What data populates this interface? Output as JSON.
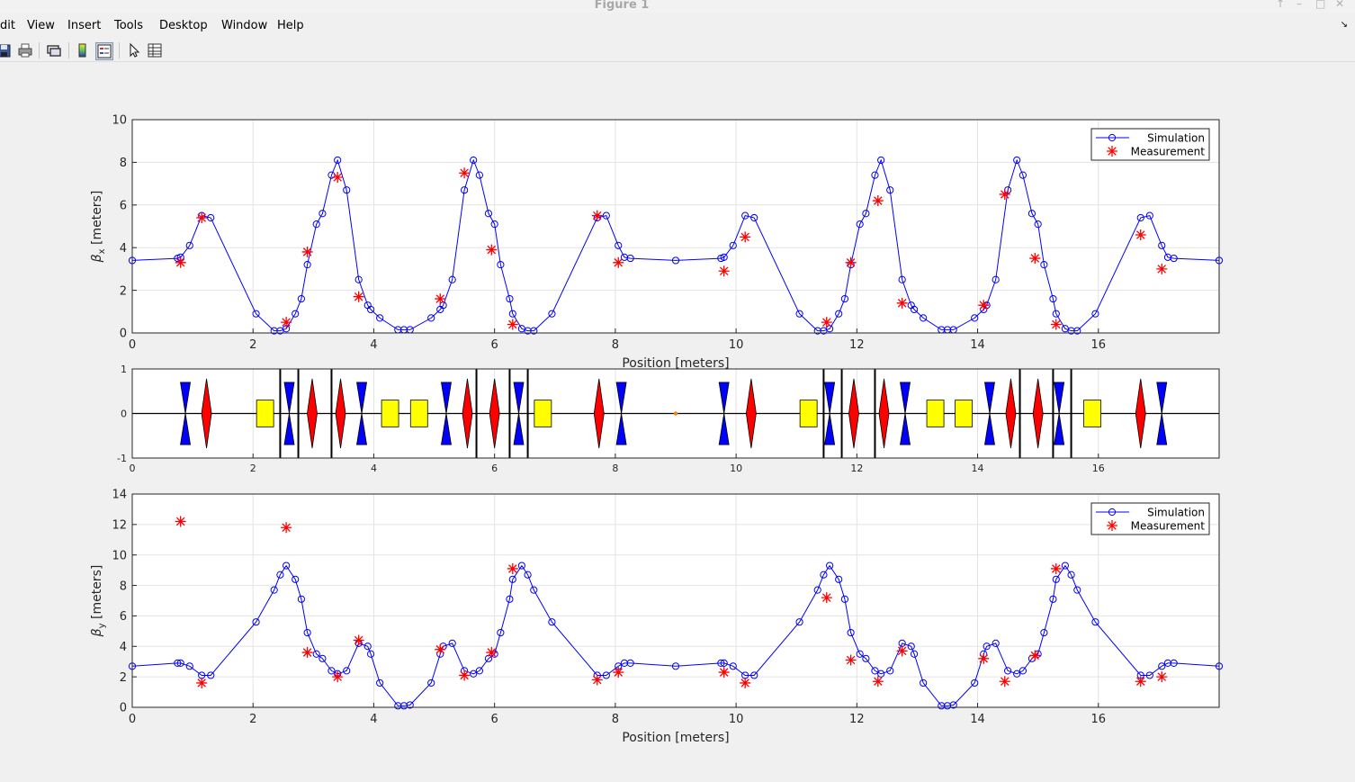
{
  "window": {
    "title": "Figure 1"
  },
  "menu": [
    "dit",
    "View",
    "Insert",
    "Tools",
    "Desktop",
    "Window",
    "Help"
  ],
  "toolbar_icons": [
    "save-icon",
    "print-icon",
    "link-icon",
    "colorbar-icon",
    "legend-icon",
    "pointer-icon",
    "property-inspector-icon"
  ],
  "colors": {
    "simulation": "#0000ff",
    "measurement": "#ff0000",
    "focusing": "#0000ff",
    "defocusing": "#ff0000",
    "bend": "#ffff00"
  },
  "chart_data": [
    {
      "type": "line",
      "xlabel": "Position [meters]",
      "ylabel_main": "β",
      "ylabel_sub": "x",
      "ylabel_unit": " [meters]",
      "xlim": [
        0,
        18
      ],
      "ylim": [
        0,
        10
      ],
      "xticks": [
        0,
        2,
        4,
        6,
        8,
        10,
        12,
        14,
        16
      ],
      "yticks": [
        0,
        2,
        4,
        6,
        8,
        10
      ],
      "grid": true,
      "legend": "top-right",
      "series": [
        {
          "name": "Simulation",
          "marker": "circle",
          "x": [
            0,
            0.75,
            0.8,
            0.95,
            1.15,
            1.3,
            2.05,
            2.35,
            2.45,
            2.55,
            2.7,
            2.8,
            2.9,
            3.05,
            3.15,
            3.3,
            3.4,
            3.55,
            3.75,
            3.9,
            3.95,
            4.1,
            4.4,
            4.5,
            4.6,
            4.95,
            5.1,
            5.15,
            5.3,
            5.5,
            5.65,
            5.75,
            5.9,
            6.0,
            6.1,
            6.25,
            6.3,
            6.45,
            6.55,
            6.65,
            6.95,
            7.7,
            7.85,
            8.05,
            8.15,
            8.25,
            9.0,
            9.75,
            9.8,
            9.95,
            10.15,
            10.3,
            11.05,
            11.35,
            11.45,
            11.55,
            11.7,
            11.8,
            11.9,
            12.05,
            12.15,
            12.3,
            12.4,
            12.55,
            12.75,
            12.9,
            12.95,
            13.1,
            13.4,
            13.5,
            13.6,
            13.95,
            14.1,
            14.15,
            14.3,
            14.5,
            14.65,
            14.75,
            14.9,
            15.0,
            15.1,
            15.25,
            15.3,
            15.45,
            15.55,
            15.65,
            15.95,
            16.7,
            16.85,
            17.05,
            17.15,
            17.25,
            18.0
          ],
          "y": [
            3.4,
            3.5,
            3.55,
            4.1,
            5.5,
            5.4,
            0.9,
            0.1,
            0.1,
            0.2,
            0.9,
            1.6,
            3.2,
            5.1,
            5.6,
            7.4,
            8.1,
            6.7,
            2.5,
            1.3,
            1.1,
            0.7,
            0.15,
            0.15,
            0.15,
            0.7,
            1.1,
            1.3,
            2.5,
            6.7,
            8.1,
            7.4,
            5.6,
            5.1,
            3.2,
            1.6,
            0.9,
            0.2,
            0.1,
            0.1,
            0.9,
            5.4,
            5.5,
            4.1,
            3.55,
            3.5,
            3.4,
            3.5,
            3.55,
            4.1,
            5.5,
            5.4,
            0.9,
            0.1,
            0.1,
            0.2,
            0.9,
            1.6,
            3.2,
            5.1,
            5.6,
            7.4,
            8.1,
            6.7,
            2.5,
            1.3,
            1.1,
            0.7,
            0.15,
            0.15,
            0.15,
            0.7,
            1.1,
            1.3,
            2.5,
            6.7,
            8.1,
            7.4,
            5.6,
            5.1,
            3.2,
            1.6,
            0.9,
            0.2,
            0.1,
            0.1,
            0.9,
            5.4,
            5.5,
            4.1,
            3.55,
            3.5,
            3.4
          ]
        },
        {
          "name": "Measurement",
          "marker": "asterisk",
          "x": [
            0.8,
            1.15,
            2.55,
            2.9,
            3.4,
            3.75,
            5.1,
            5.5,
            5.95,
            6.3,
            7.7,
            8.05,
            9.8,
            10.15,
            11.5,
            11.9,
            12.35,
            12.75,
            14.1,
            14.45,
            14.95,
            15.3,
            16.7,
            17.05
          ],
          "y": [
            3.3,
            5.4,
            0.5,
            3.8,
            7.3,
            1.7,
            1.6,
            7.5,
            3.9,
            0.4,
            5.5,
            3.3,
            2.9,
            4.5,
            0.5,
            3.3,
            6.2,
            1.4,
            1.3,
            6.5,
            3.5,
            0.4,
            4.6,
            3.0
          ]
        }
      ]
    },
    {
      "type": "diagram",
      "xlim": [
        0,
        18
      ],
      "ylim": [
        -1,
        1
      ],
      "xticks": [
        0,
        2,
        4,
        6,
        8,
        10,
        12,
        14,
        16
      ],
      "yticks": [
        -1,
        0,
        1
      ],
      "grid": true,
      "focusing_quads_x": [
        0.88,
        2.6,
        3.8,
        5.2,
        6.4,
        8.1,
        9.8,
        11.55,
        12.8,
        14.2,
        15.35,
        17.05
      ],
      "defocusing_quads_x": [
        1.23,
        2.98,
        3.45,
        5.55,
        6.0,
        7.73,
        10.25,
        11.95,
        12.45,
        14.55,
        15.0,
        16.7
      ],
      "bends_x": [
        2.2,
        4.27,
        4.75,
        6.8,
        11.2,
        13.3,
        13.77,
        15.9
      ],
      "monitors_x": [
        2.45,
        2.75,
        3.3,
        5.7,
        6.25,
        6.55,
        11.45,
        11.75,
        12.3,
        14.7,
        15.25,
        15.55
      ],
      "marker_x": [
        9.0
      ]
    },
    {
      "type": "line",
      "xlabel": "Position [meters]",
      "ylabel_main": "β",
      "ylabel_sub": "y",
      "ylabel_unit": " [meters]",
      "xlim": [
        0,
        18
      ],
      "ylim": [
        0,
        14
      ],
      "xticks": [
        0,
        2,
        4,
        6,
        8,
        10,
        12,
        14,
        16
      ],
      "yticks": [
        0,
        2,
        4,
        6,
        8,
        10,
        12,
        14
      ],
      "grid": true,
      "legend": "top-right",
      "series": [
        {
          "name": "Simulation",
          "marker": "circle",
          "x": [
            0,
            0.75,
            0.8,
            0.95,
            1.15,
            1.3,
            2.05,
            2.35,
            2.45,
            2.55,
            2.7,
            2.8,
            2.9,
            3.05,
            3.15,
            3.3,
            3.4,
            3.55,
            3.75,
            3.9,
            3.95,
            4.1,
            4.4,
            4.5,
            4.6,
            4.95,
            5.1,
            5.15,
            5.3,
            5.5,
            5.65,
            5.75,
            5.9,
            6.0,
            6.1,
            6.25,
            6.3,
            6.45,
            6.55,
            6.65,
            6.95,
            7.7,
            7.85,
            8.05,
            8.15,
            8.25,
            9.0,
            9.75,
            9.8,
            9.95,
            10.15,
            10.3,
            11.05,
            11.35,
            11.45,
            11.55,
            11.7,
            11.8,
            11.9,
            12.05,
            12.15,
            12.3,
            12.4,
            12.55,
            12.75,
            12.9,
            12.95,
            13.1,
            13.4,
            13.5,
            13.6,
            13.95,
            14.1,
            14.15,
            14.3,
            14.5,
            14.65,
            14.75,
            14.9,
            15.0,
            15.1,
            15.25,
            15.3,
            15.45,
            15.55,
            15.65,
            15.95,
            16.7,
            16.85,
            17.05,
            17.15,
            17.25,
            18.0
          ],
          "y": [
            2.7,
            2.9,
            2.9,
            2.7,
            2.1,
            2.1,
            5.6,
            7.7,
            8.7,
            9.3,
            8.4,
            7.1,
            4.9,
            3.5,
            3.2,
            2.4,
            2.2,
            2.4,
            4.2,
            4.0,
            3.5,
            1.6,
            0.1,
            0.1,
            0.15,
            1.6,
            3.5,
            4.0,
            4.2,
            2.4,
            2.2,
            2.4,
            3.2,
            3.5,
            4.9,
            7.1,
            8.4,
            9.3,
            8.7,
            7.7,
            5.6,
            2.1,
            2.1,
            2.7,
            2.9,
            2.9,
            2.7,
            2.9,
            2.9,
            2.7,
            2.1,
            2.1,
            5.6,
            7.7,
            8.7,
            9.3,
            8.4,
            7.1,
            4.9,
            3.5,
            3.2,
            2.4,
            2.2,
            2.4,
            4.2,
            4.0,
            3.5,
            1.6,
            0.1,
            0.1,
            0.15,
            1.6,
            3.5,
            4.0,
            4.2,
            2.4,
            2.2,
            2.4,
            3.2,
            3.5,
            4.9,
            7.1,
            8.4,
            9.3,
            8.7,
            7.7,
            5.6,
            2.1,
            2.1,
            2.7,
            2.9,
            2.9,
            2.7
          ]
        },
        {
          "name": "Measurement",
          "marker": "asterisk",
          "x": [
            0.8,
            1.15,
            2.55,
            2.9,
            3.4,
            3.75,
            5.1,
            5.5,
            5.95,
            6.3,
            7.7,
            8.05,
            9.8,
            10.15,
            11.5,
            11.9,
            12.35,
            12.75,
            14.1,
            14.45,
            14.95,
            15.3,
            16.7,
            17.05
          ],
          "y": [
            12.2,
            1.6,
            11.8,
            3.6,
            2.0,
            4.4,
            3.8,
            2.1,
            3.6,
            9.1,
            1.8,
            2.3,
            2.3,
            1.6,
            7.2,
            3.1,
            1.7,
            3.7,
            3.2,
            1.7,
            3.4,
            9.1,
            1.7,
            2.0
          ]
        }
      ]
    }
  ]
}
